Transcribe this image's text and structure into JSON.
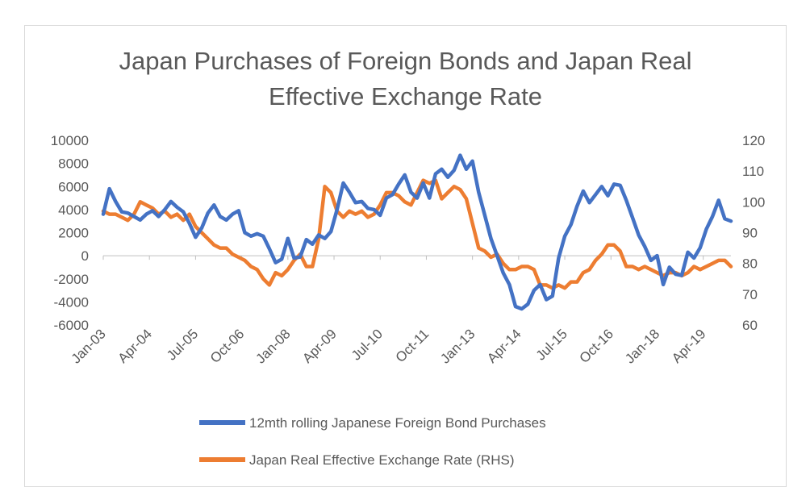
{
  "chart_data": {
    "type": "line",
    "title": "Japan Purchases of Foreign Bonds and Japan Real Effective Exchange Rate",
    "title_lines": [
      "Japan Purchases of Foreign Bonds and Japan Real",
      "Effective Exchange Rate"
    ],
    "x_start": "2003-01",
    "x_end": "2020-01",
    "x_ticks": [
      "Jan-03",
      "Apr-04",
      "Jul-05",
      "Oct-06",
      "Jan-08",
      "Apr-09",
      "Jul-10",
      "Oct-11",
      "Jan-13",
      "Apr-14",
      "Jul-15",
      "Oct-16",
      "Jan-18",
      "Apr-19"
    ],
    "y_left": {
      "min": -6000,
      "max": 10000,
      "step": 2000,
      "tick_labels": [
        "-6000",
        "-4000",
        "-2000",
        "0",
        "2000",
        "4000",
        "6000",
        "8000",
        "10000"
      ]
    },
    "y_right": {
      "min": 60,
      "max": 120,
      "step": 10,
      "tick_labels": [
        "60",
        "70",
        "80",
        "90",
        "100",
        "110",
        "120"
      ]
    },
    "grid": false,
    "legend_position": "bottom",
    "series": [
      {
        "name": "12mth rolling Japanese Foreign Bond Purchases",
        "axis": "left",
        "color": "#4472c4",
        "points": [
          [
            "2003-01",
            3600
          ],
          [
            "2003-03",
            5800
          ],
          [
            "2003-05",
            4700
          ],
          [
            "2003-07",
            3800
          ],
          [
            "2003-09",
            3700
          ],
          [
            "2003-11",
            3400
          ],
          [
            "2004-01",
            3100
          ],
          [
            "2004-03",
            3600
          ],
          [
            "2004-05",
            3900
          ],
          [
            "2004-07",
            3400
          ],
          [
            "2004-09",
            4000
          ],
          [
            "2004-11",
            4700
          ],
          [
            "2005-01",
            4200
          ],
          [
            "2005-03",
            3800
          ],
          [
            "2005-05",
            2800
          ],
          [
            "2005-07",
            1600
          ],
          [
            "2005-09",
            2400
          ],
          [
            "2005-11",
            3700
          ],
          [
            "2006-01",
            4400
          ],
          [
            "2006-03",
            3400
          ],
          [
            "2006-05",
            3100
          ],
          [
            "2006-07",
            3600
          ],
          [
            "2006-09",
            3900
          ],
          [
            "2006-11",
            2000
          ],
          [
            "2007-01",
            1700
          ],
          [
            "2007-03",
            1900
          ],
          [
            "2007-05",
            1700
          ],
          [
            "2007-07",
            600
          ],
          [
            "2007-09",
            -600
          ],
          [
            "2007-11",
            -300
          ],
          [
            "2008-01",
            1500
          ],
          [
            "2008-03",
            -200
          ],
          [
            "2008-05",
            -100
          ],
          [
            "2008-07",
            1400
          ],
          [
            "2008-09",
            1000
          ],
          [
            "2008-11",
            1800
          ],
          [
            "2009-01",
            1500
          ],
          [
            "2009-03",
            2100
          ],
          [
            "2009-05",
            4000
          ],
          [
            "2009-07",
            6300
          ],
          [
            "2009-09",
            5500
          ],
          [
            "2009-11",
            4600
          ],
          [
            "2010-01",
            4700
          ],
          [
            "2010-03",
            4100
          ],
          [
            "2010-05",
            4000
          ],
          [
            "2010-07",
            3500
          ],
          [
            "2010-09",
            5000
          ],
          [
            "2010-11",
            5300
          ],
          [
            "2011-01",
            6200
          ],
          [
            "2011-03",
            7000
          ],
          [
            "2011-05",
            5500
          ],
          [
            "2011-07",
            5000
          ],
          [
            "2011-09",
            6300
          ],
          [
            "2011-11",
            5000
          ],
          [
            "2012-01",
            7100
          ],
          [
            "2012-03",
            7500
          ],
          [
            "2012-05",
            6800
          ],
          [
            "2012-07",
            7400
          ],
          [
            "2012-09",
            8700
          ],
          [
            "2012-11",
            7500
          ],
          [
            "2013-01",
            8200
          ],
          [
            "2013-03",
            5500
          ],
          [
            "2013-05",
            3500
          ],
          [
            "2013-07",
            1500
          ],
          [
            "2013-09",
            0
          ],
          [
            "2013-11",
            -1500
          ],
          [
            "2014-01",
            -2500
          ],
          [
            "2014-03",
            -4400
          ],
          [
            "2014-05",
            -4600
          ],
          [
            "2014-07",
            -4200
          ],
          [
            "2014-09",
            -3000
          ],
          [
            "2014-11",
            -2500
          ],
          [
            "2015-01",
            -3800
          ],
          [
            "2015-03",
            -3500
          ],
          [
            "2015-05",
            -200
          ],
          [
            "2015-07",
            1700
          ],
          [
            "2015-09",
            2700
          ],
          [
            "2015-11",
            4300
          ],
          [
            "2016-01",
            5600
          ],
          [
            "2016-03",
            4600
          ],
          [
            "2016-05",
            5300
          ],
          [
            "2016-07",
            6000
          ],
          [
            "2016-09",
            5200
          ],
          [
            "2016-11",
            6200
          ],
          [
            "2017-01",
            6100
          ],
          [
            "2017-03",
            4800
          ],
          [
            "2017-05",
            3300
          ],
          [
            "2017-07",
            1800
          ],
          [
            "2017-09",
            800
          ],
          [
            "2017-11",
            -400
          ],
          [
            "2018-01",
            0
          ],
          [
            "2018-03",
            -2500
          ],
          [
            "2018-05",
            -1000
          ],
          [
            "2018-07",
            -1600
          ],
          [
            "2018-09",
            -1700
          ],
          [
            "2018-11",
            300
          ],
          [
            "2019-01",
            -200
          ],
          [
            "2019-03",
            700
          ],
          [
            "2019-05",
            2300
          ],
          [
            "2019-07",
            3400
          ],
          [
            "2019-09",
            4800
          ],
          [
            "2019-11",
            3200
          ],
          [
            "2020-01",
            3000
          ]
        ]
      },
      {
        "name": "Japan Real Effective Exchange Rate (RHS)",
        "axis": "right",
        "color": "#ed7d31",
        "points": [
          [
            "2003-01",
            97
          ],
          [
            "2003-03",
            96
          ],
          [
            "2003-05",
            96
          ],
          [
            "2003-07",
            95
          ],
          [
            "2003-09",
            94
          ],
          [
            "2003-11",
            96
          ],
          [
            "2004-01",
            100
          ],
          [
            "2004-03",
            99
          ],
          [
            "2004-05",
            98
          ],
          [
            "2004-07",
            96
          ],
          [
            "2004-09",
            97
          ],
          [
            "2004-11",
            95
          ],
          [
            "2005-01",
            96
          ],
          [
            "2005-03",
            94
          ],
          [
            "2005-05",
            96
          ],
          [
            "2005-07",
            92
          ],
          [
            "2005-09",
            90
          ],
          [
            "2005-11",
            88
          ],
          [
            "2006-01",
            86
          ],
          [
            "2006-03",
            85
          ],
          [
            "2006-05",
            85
          ],
          [
            "2006-07",
            83
          ],
          [
            "2006-09",
            82
          ],
          [
            "2006-11",
            81
          ],
          [
            "2007-01",
            79
          ],
          [
            "2007-03",
            78
          ],
          [
            "2007-05",
            75
          ],
          [
            "2007-07",
            73
          ],
          [
            "2007-09",
            77
          ],
          [
            "2007-11",
            76
          ],
          [
            "2008-01",
            78
          ],
          [
            "2008-03",
            81
          ],
          [
            "2008-05",
            83
          ],
          [
            "2008-07",
            79
          ],
          [
            "2008-09",
            79
          ],
          [
            "2008-11",
            88
          ],
          [
            "2009-01",
            105
          ],
          [
            "2009-03",
            103
          ],
          [
            "2009-05",
            97
          ],
          [
            "2009-07",
            95
          ],
          [
            "2009-09",
            97
          ],
          [
            "2009-11",
            96
          ],
          [
            "2010-01",
            97
          ],
          [
            "2010-03",
            95
          ],
          [
            "2010-05",
            96
          ],
          [
            "2010-07",
            99
          ],
          [
            "2010-09",
            103
          ],
          [
            "2010-11",
            103
          ],
          [
            "2011-01",
            102
          ],
          [
            "2011-03",
            100
          ],
          [
            "2011-05",
            99
          ],
          [
            "2011-07",
            103
          ],
          [
            "2011-09",
            107
          ],
          [
            "2011-11",
            106
          ],
          [
            "2012-01",
            107
          ],
          [
            "2012-03",
            101
          ],
          [
            "2012-05",
            103
          ],
          [
            "2012-07",
            105
          ],
          [
            "2012-09",
            104
          ],
          [
            "2012-11",
            101
          ],
          [
            "2013-01",
            93
          ],
          [
            "2013-03",
            85
          ],
          [
            "2013-05",
            84
          ],
          [
            "2013-07",
            82
          ],
          [
            "2013-09",
            83
          ],
          [
            "2013-11",
            80
          ],
          [
            "2014-01",
            78
          ],
          [
            "2014-03",
            78
          ],
          [
            "2014-05",
            79
          ],
          [
            "2014-07",
            79
          ],
          [
            "2014-09",
            78
          ],
          [
            "2014-11",
            73
          ],
          [
            "2015-01",
            73
          ],
          [
            "2015-03",
            72
          ],
          [
            "2015-05",
            73
          ],
          [
            "2015-07",
            72
          ],
          [
            "2015-09",
            74
          ],
          [
            "2015-11",
            74
          ],
          [
            "2016-01",
            77
          ],
          [
            "2016-03",
            78
          ],
          [
            "2016-05",
            81
          ],
          [
            "2016-07",
            83
          ],
          [
            "2016-09",
            86
          ],
          [
            "2016-11",
            86
          ],
          [
            "2017-01",
            84
          ],
          [
            "2017-03",
            79
          ],
          [
            "2017-05",
            79
          ],
          [
            "2017-07",
            78
          ],
          [
            "2017-09",
            79
          ],
          [
            "2017-11",
            78
          ],
          [
            "2018-01",
            77
          ],
          [
            "2018-03",
            76
          ],
          [
            "2018-05",
            77
          ],
          [
            "2018-07",
            77
          ],
          [
            "2018-09",
            76
          ],
          [
            "2018-11",
            77
          ],
          [
            "2019-01",
            79
          ],
          [
            "2019-03",
            78
          ],
          [
            "2019-05",
            79
          ],
          [
            "2019-07",
            80
          ],
          [
            "2019-09",
            81
          ],
          [
            "2019-11",
            81
          ],
          [
            "2020-01",
            79
          ]
        ]
      }
    ]
  }
}
